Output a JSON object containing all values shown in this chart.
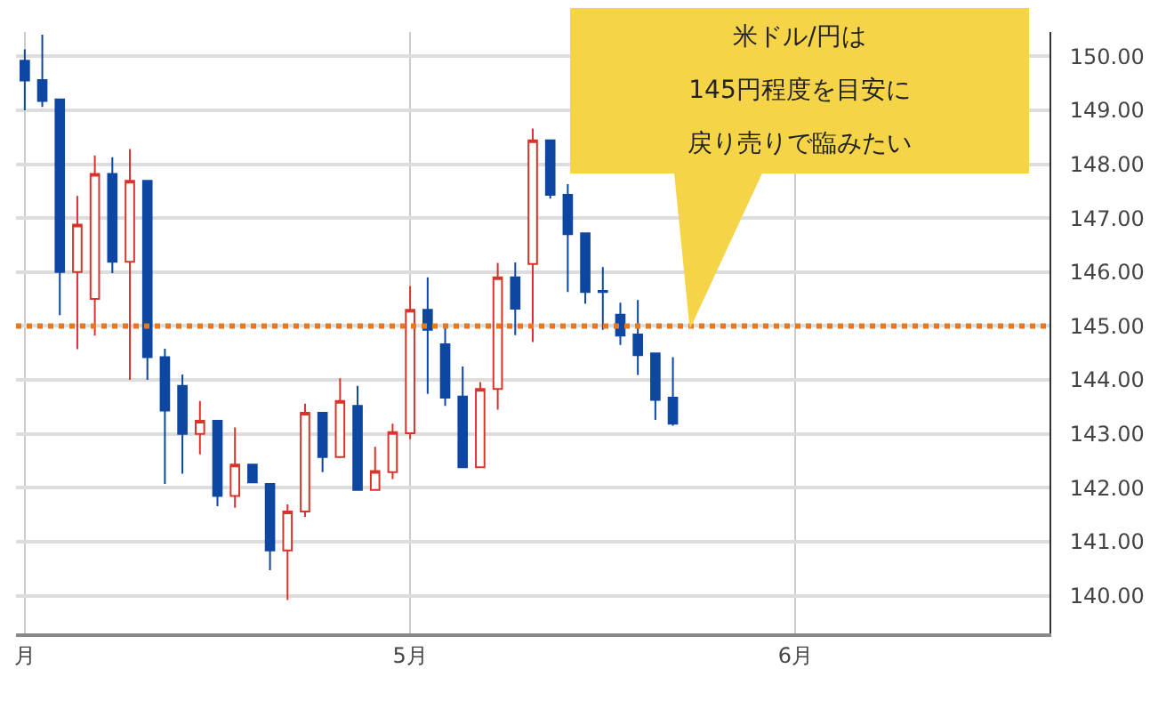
{
  "chart_data": {
    "type": "candlestick",
    "categories": [
      "月",
      null,
      null,
      null,
      null,
      null,
      null,
      null,
      null,
      null,
      null,
      null,
      null,
      null,
      null,
      null,
      null,
      null,
      null,
      null,
      null,
      null,
      "5月",
      null,
      null,
      null,
      null,
      null,
      null,
      null,
      null,
      null,
      null,
      null,
      null,
      null,
      null,
      null,
      null,
      null,
      null,
      null,
      null,
      null,
      "6月",
      null,
      null,
      null,
      null,
      null,
      null,
      null,
      null,
      null,
      null,
      null,
      null,
      null,
      null
    ],
    "ohlc": [
      [
        149.92,
        150.13,
        149.0,
        149.55
      ],
      [
        149.56,
        150.4,
        149.06,
        149.17
      ],
      [
        149.2,
        149.2,
        145.2,
        146.0
      ],
      [
        146.0,
        147.41,
        144.57,
        146.88
      ],
      [
        145.5,
        148.16,
        144.82,
        147.82
      ],
      [
        147.82,
        148.13,
        145.98,
        146.19
      ],
      [
        146.19,
        148.28,
        144.0,
        147.69
      ],
      [
        147.69,
        147.69,
        144.0,
        144.42
      ],
      [
        144.42,
        144.58,
        142.07,
        143.43
      ],
      [
        143.89,
        144.1,
        142.26,
        143.0
      ],
      [
        143.0,
        143.61,
        142.62,
        143.24
      ],
      [
        143.24,
        143.24,
        141.66,
        141.85
      ],
      [
        141.85,
        143.12,
        141.63,
        142.43
      ],
      [
        142.43,
        142.43,
        142.1,
        142.1
      ],
      [
        142.07,
        142.07,
        140.47,
        140.84
      ],
      [
        140.84,
        141.69,
        139.92,
        141.56
      ],
      [
        141.56,
        143.56,
        141.46,
        143.39
      ],
      [
        143.39,
        143.39,
        142.29,
        142.57
      ],
      [
        142.57,
        144.03,
        142.57,
        143.61
      ],
      [
        143.52,
        143.89,
        141.96,
        141.96
      ],
      [
        141.96,
        142.76,
        141.96,
        142.31
      ],
      [
        142.29,
        143.19,
        142.16,
        143.03
      ],
      [
        143.01,
        145.74,
        142.9,
        145.3
      ],
      [
        145.3,
        145.9,
        143.74,
        144.93
      ],
      [
        144.66,
        144.97,
        143.52,
        143.67
      ],
      [
        143.69,
        144.25,
        142.38,
        142.38
      ],
      [
        142.38,
        143.96,
        142.38,
        143.83
      ],
      [
        143.83,
        146.17,
        143.45,
        145.9
      ],
      [
        145.9,
        146.18,
        144.83,
        145.32
      ],
      [
        146.15,
        148.66,
        144.7,
        148.44
      ],
      [
        148.44,
        148.44,
        147.36,
        147.43
      ],
      [
        147.43,
        147.63,
        145.63,
        146.7
      ],
      [
        146.72,
        146.72,
        145.41,
        145.63
      ],
      [
        145.65,
        146.09,
        144.93,
        145.63
      ],
      [
        145.21,
        145.43,
        144.65,
        144.82
      ],
      [
        144.84,
        145.48,
        144.09,
        144.46
      ],
      [
        144.49,
        144.49,
        143.26,
        143.63
      ],
      [
        143.67,
        144.42,
        143.15,
        143.19
      ],
      null,
      null,
      null,
      null,
      null,
      null,
      null,
      null,
      null,
      null,
      null,
      null,
      null,
      null,
      null,
      null,
      null,
      null,
      null,
      null,
      null
    ],
    "colors": [
      "#0d47a1",
      "#0d47a1",
      "#0d47a1",
      "#d9342b",
      "#d9342b",
      "#0d47a1",
      "#d9342b",
      "#0d47a1",
      "#0d47a1",
      "#0d47a1",
      "#d9342b",
      "#0d47a1",
      "#d9342b",
      "#0d47a1",
      "#0d47a1",
      "#d9342b",
      "#d9342b",
      "#0d47a1",
      "#d9342b",
      "#0d47a1",
      "#d9342b",
      "#d9342b",
      "#d9342b",
      "#0d47a1",
      "#0d47a1",
      "#0d47a1",
      "#d9342b",
      "#d9342b",
      "#0d47a1",
      "#d9342b",
      "#0d47a1",
      "#0d47a1",
      "#0d47a1",
      "#0d47a1",
      "#0d47a1",
      "#0d47a1",
      "#0d47a1",
      "#0d47a1",
      null,
      null,
      null,
      null,
      null,
      null,
      null,
      null,
      null,
      null,
      null,
      null,
      null,
      null,
      null,
      null,
      null,
      null,
      null,
      null,
      null
    ],
    "ylim": [
      139.3,
      150.45
    ],
    "yticks": [
      {
        "value": 140,
        "label": "140.00"
      },
      {
        "value": 141,
        "label": "141.00"
      },
      {
        "value": 142,
        "label": "142.00"
      },
      {
        "value": 143,
        "label": "143.00"
      },
      {
        "value": 144,
        "label": "144.00"
      },
      {
        "value": 145,
        "label": "145.00"
      },
      {
        "value": 146,
        "label": "146.00"
      },
      {
        "value": 147,
        "label": "147.00"
      },
      {
        "value": 148,
        "label": "148.00"
      },
      {
        "value": 149,
        "label": "149.00"
      },
      {
        "value": 150,
        "label": "150.00"
      }
    ],
    "grid": true,
    "legend": false,
    "ref_lines": [
      {
        "axis": "y",
        "value": 145,
        "color": "#e87722",
        "line_style": "dotted"
      }
    ],
    "annotations": [
      "米ドル/円は",
      "145円程度を目安に",
      "戻り売りで臨みたい"
    ]
  }
}
